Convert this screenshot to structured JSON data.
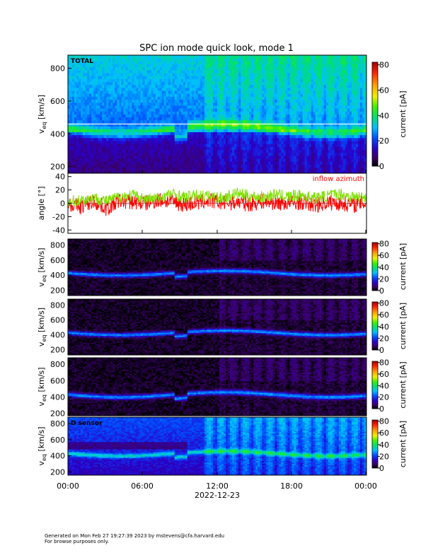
{
  "title": "SPC ion mode quick look, mode 1",
  "colors": {
    "inflow_azimuth": "#ff0000",
    "inflow_elevation": "#7ee000",
    "reference_line": "#ffffff",
    "frame": "#000000"
  },
  "footer": {
    "line1": "Generated on Mon Feb 27 19:27:39 2023 by mstevens@cfa.harvard.edu",
    "line2": "For browse purposes only."
  },
  "chart_data": [
    {
      "type": "heatmap",
      "panel": "total",
      "panel_label": "TOTAL",
      "ylabel_main": "v",
      "ylabel_sub": "eq",
      "ylabel_unit": "[km/s]",
      "yticks": [
        200,
        400,
        600,
        800
      ],
      "ylim": [
        160,
        880
      ],
      "colorbar_label": "current [pA]",
      "colorbar_ticks": [
        0,
        20,
        40,
        60,
        80
      ],
      "colorbar_range": [
        0,
        82
      ],
      "reference_line_value": 460
    },
    {
      "type": "line",
      "panel": "angle",
      "ylabel": "angle [°]",
      "yticks": [
        -40,
        -20,
        0,
        20,
        40
      ],
      "ylim": [
        -45,
        45
      ],
      "legend_label": "inflow azimuth",
      "legend_position": "top-right",
      "series": [
        {
          "name": "inflow azimuth",
          "values": [
            2,
            5,
            8,
            3,
            10,
            12,
            6,
            8,
            14,
            9,
            12,
            10,
            8,
            15,
            11,
            9,
            13,
            10,
            12,
            8,
            11,
            14,
            9,
            10
          ]
        },
        {
          "values": [
            0,
            -5,
            3,
            -8,
            4,
            2,
            0,
            5,
            3,
            -2,
            1,
            4,
            0,
            2,
            -1,
            3,
            1,
            0,
            2,
            -3,
            1,
            0,
            -2,
            1
          ]
        }
      ],
      "x": [
        "00:00",
        "01:00",
        "02:00",
        "03:00",
        "04:00",
        "05:00",
        "06:00",
        "07:00",
        "08:00",
        "09:00",
        "10:00",
        "11:00",
        "12:00",
        "13:00",
        "14:00",
        "15:00",
        "16:00",
        "17:00",
        "18:00",
        "19:00",
        "20:00",
        "21:00",
        "22:00",
        "23:00"
      ]
    },
    {
      "type": "heatmap",
      "panel": "sensor-a",
      "ylabel_main": "v",
      "ylabel_sub": "eq",
      "ylabel_unit": "[km/s]",
      "yticks": [
        200,
        400,
        600,
        800
      ],
      "ylim": [
        130,
        880
      ],
      "colorbar_label": "current [pA]",
      "colorbar_ticks": [
        0,
        20,
        40,
        60,
        80
      ],
      "colorbar_range": [
        0,
        82
      ]
    },
    {
      "type": "heatmap",
      "panel": "sensor-b",
      "ylabel_main": "v",
      "ylabel_sub": "eq",
      "ylabel_unit": "[km/s]",
      "yticks": [
        200,
        400,
        600,
        800
      ],
      "ylim": [
        130,
        880
      ],
      "colorbar_label": "current [pA]",
      "colorbar_ticks": [
        0,
        20,
        40,
        60,
        80
      ],
      "colorbar_range": [
        0,
        82
      ]
    },
    {
      "type": "heatmap",
      "panel": "sensor-c",
      "ylabel_main": "v",
      "ylabel_sub": "eq",
      "ylabel_unit": "[km/s]",
      "yticks": [
        200,
        400,
        600,
        800
      ],
      "ylim": [
        170,
        880
      ],
      "colorbar_label": "current [pA]",
      "colorbar_ticks": [
        0,
        20,
        40,
        60,
        80
      ],
      "colorbar_range": [
        0,
        82
      ]
    },
    {
      "type": "heatmap",
      "panel": "sensor-d",
      "panel_label": "D sensor",
      "ylabel_main": "v",
      "ylabel_sub": "eq",
      "ylabel_unit": "[km/s]",
      "yticks": [
        200,
        400,
        600,
        800
      ],
      "ylim": [
        160,
        880
      ],
      "colorbar_label": "current [pA]",
      "colorbar_ticks": [
        0,
        20,
        40,
        60,
        80
      ],
      "colorbar_range": [
        0,
        82
      ]
    }
  ],
  "x_axis": {
    "ticks": [
      "00:00",
      "06:00",
      "12:00",
      "18:00",
      "00:00"
    ],
    "date_label": "2022-12-23"
  }
}
